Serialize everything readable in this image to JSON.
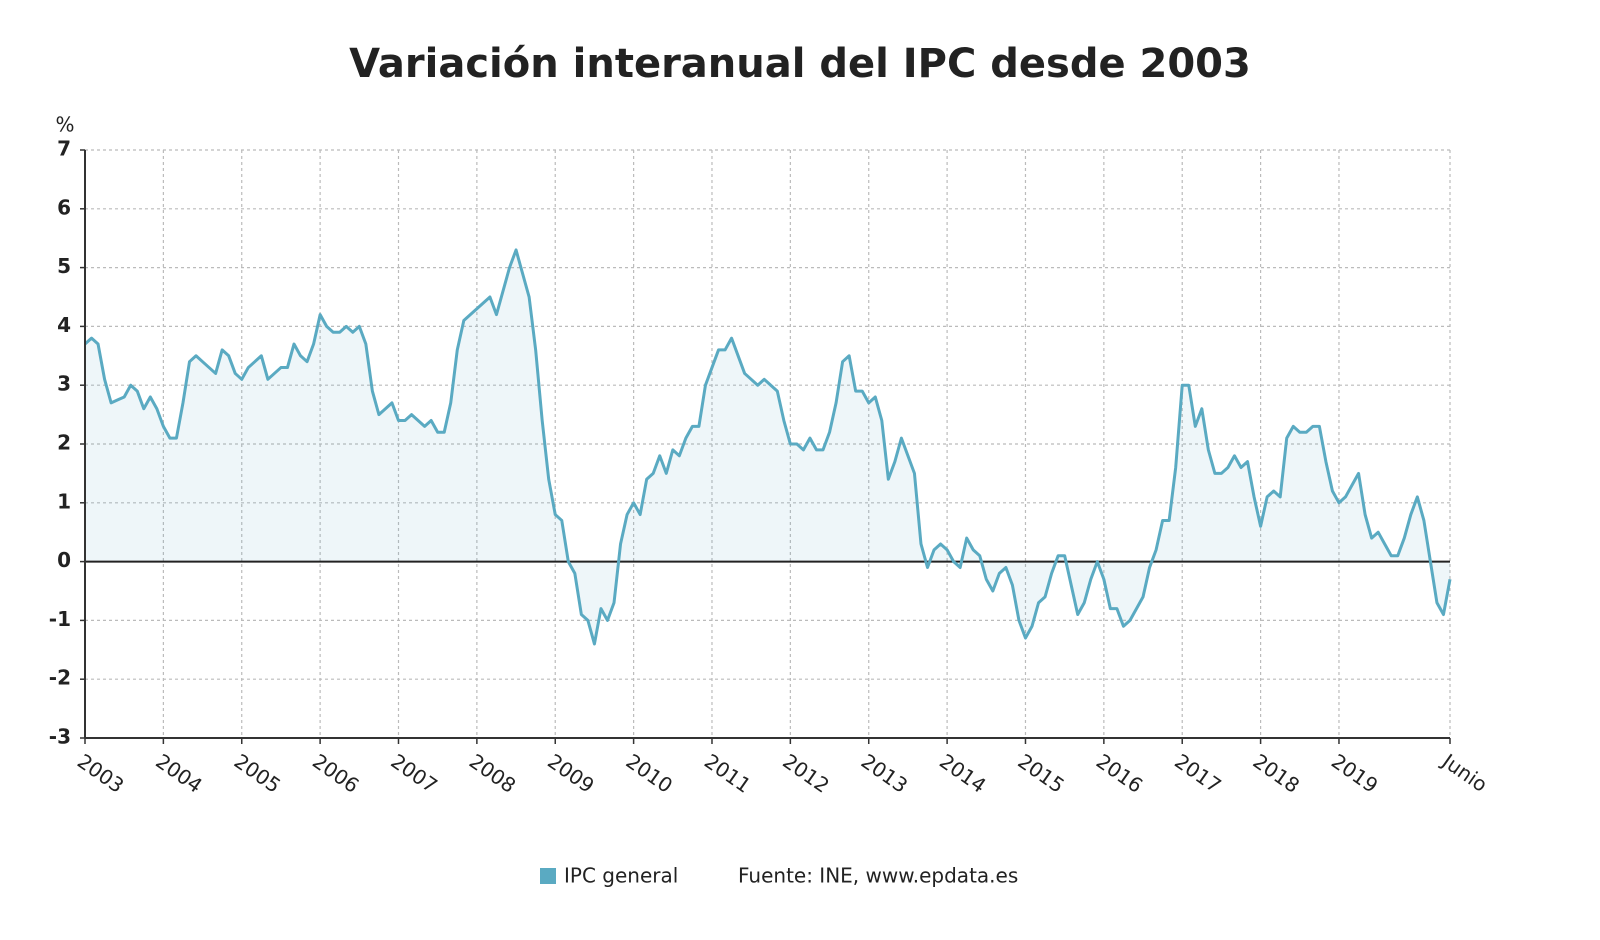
{
  "chart_data": {
    "type": "line",
    "title": "Variación interanual del IPC desde 2003",
    "y_label": "%",
    "categories": [
      "2003",
      null,
      null,
      null,
      null,
      null,
      null,
      null,
      null,
      null,
      null,
      null,
      "2004",
      null,
      null,
      null,
      null,
      null,
      null,
      null,
      null,
      null,
      null,
      null,
      "2005",
      null,
      null,
      null,
      null,
      null,
      null,
      null,
      null,
      null,
      null,
      null,
      "2006",
      null,
      null,
      null,
      null,
      null,
      null,
      null,
      null,
      null,
      null,
      null,
      "2007",
      null,
      null,
      null,
      null,
      null,
      null,
      null,
      null,
      null,
      null,
      null,
      "2008",
      null,
      null,
      null,
      null,
      null,
      null,
      null,
      null,
      null,
      null,
      null,
      "2009",
      null,
      null,
      null,
      null,
      null,
      null,
      null,
      null,
      null,
      null,
      null,
      "2010",
      null,
      null,
      null,
      null,
      null,
      null,
      null,
      null,
      null,
      null,
      null,
      "2011",
      null,
      null,
      null,
      null,
      null,
      null,
      null,
      null,
      null,
      null,
      null,
      "2012",
      null,
      null,
      null,
      null,
      null,
      null,
      null,
      null,
      null,
      null,
      null,
      "2013",
      null,
      null,
      null,
      null,
      null,
      null,
      null,
      null,
      null,
      null,
      null,
      "2014",
      null,
      null,
      null,
      null,
      null,
      null,
      null,
      null,
      null,
      null,
      null,
      "2015",
      null,
      null,
      null,
      null,
      null,
      null,
      null,
      null,
      null,
      null,
      null,
      "2016",
      null,
      null,
      null,
      null,
      null,
      null,
      null,
      null,
      null,
      null,
      null,
      "2017",
      null,
      null,
      null,
      null,
      null,
      null,
      null,
      null,
      null,
      null,
      null,
      "2018",
      null,
      null,
      null,
      null,
      null,
      null,
      null,
      null,
      null,
      null,
      null,
      "2019",
      null,
      null,
      null,
      null,
      null,
      null,
      null,
      null,
      null,
      null,
      null,
      null,
      null,
      null,
      null,
      null,
      "Junio"
    ],
    "series": [
      {
        "name": "IPC general",
        "color": "#5aaac2",
        "values": [
          3.7,
          3.8,
          3.7,
          3.1,
          2.7,
          2.75,
          2.8,
          3.0,
          2.9,
          2.6,
          2.8,
          2.6,
          2.3,
          2.1,
          2.1,
          2.7,
          3.4,
          3.5,
          3.4,
          3.3,
          3.2,
          3.6,
          3.5,
          3.2,
          3.1,
          3.3,
          3.4,
          3.5,
          3.1,
          3.2,
          3.3,
          3.3,
          3.7,
          3.5,
          3.4,
          3.7,
          4.2,
          4.0,
          3.9,
          3.9,
          4.0,
          3.9,
          4.0,
          3.7,
          2.9,
          2.5,
          2.6,
          2.7,
          2.4,
          2.4,
          2.5,
          2.4,
          2.3,
          2.4,
          2.2,
          2.2,
          2.7,
          3.6,
          4.1,
          4.2,
          4.3,
          4.4,
          4.5,
          4.2,
          4.6,
          5.0,
          5.3,
          4.9,
          4.5,
          3.6,
          2.4,
          1.4,
          0.8,
          0.7,
          0.0,
          -0.2,
          -0.9,
          -1.0,
          -1.4,
          -0.8,
          -1.0,
          -0.7,
          0.3,
          0.8,
          1.0,
          0.8,
          1.4,
          1.5,
          1.8,
          1.5,
          1.9,
          1.8,
          2.1,
          2.3,
          2.3,
          3.0,
          3.3,
          3.6,
          3.6,
          3.8,
          3.5,
          3.2,
          3.1,
          3.0,
          3.1,
          3.0,
          2.9,
          2.4,
          2.0,
          2.0,
          1.9,
          2.1,
          1.9,
          1.9,
          2.2,
          2.7,
          3.4,
          3.5,
          2.9,
          2.9,
          2.7,
          2.8,
          2.4,
          1.4,
          1.7,
          2.1,
          1.8,
          1.5,
          0.3,
          -0.1,
          0.2,
          0.3,
          0.2,
          0.0,
          -0.1,
          0.4,
          0.2,
          0.1,
          -0.3,
          -0.5,
          -0.2,
          -0.1,
          -0.4,
          -1.0,
          -1.3,
          -1.1,
          -0.7,
          -0.6,
          -0.2,
          0.1,
          0.1,
          -0.4,
          -0.9,
          -0.7,
          -0.3,
          0.0,
          -0.3,
          -0.8,
          -0.8,
          -1.1,
          -1.0,
          -0.8,
          -0.6,
          -0.1,
          0.2,
          0.7,
          0.7,
          1.6,
          3.0,
          3.0,
          2.3,
          2.6,
          1.9,
          1.5,
          1.5,
          1.6,
          1.8,
          1.6,
          1.7,
          1.1,
          0.6,
          1.1,
          1.2,
          1.1,
          2.1,
          2.3,
          2.2,
          2.2,
          2.3,
          2.3,
          1.7,
          1.2,
          1.0,
          1.1,
          1.3,
          1.5,
          0.8,
          0.4,
          0.5,
          0.3,
          0.1,
          0.1,
          0.4,
          0.8,
          1.1,
          0.7,
          0.0,
          -0.7,
          -0.9,
          -0.3
        ]
      }
    ],
    "ylim": [
      -3,
      7
    ],
    "yticks": [
      -3,
      -2,
      -1,
      0,
      1,
      2,
      3,
      4,
      5,
      6,
      7
    ],
    "grid": true,
    "source": "Fuente: INE, www.epdata.es"
  }
}
